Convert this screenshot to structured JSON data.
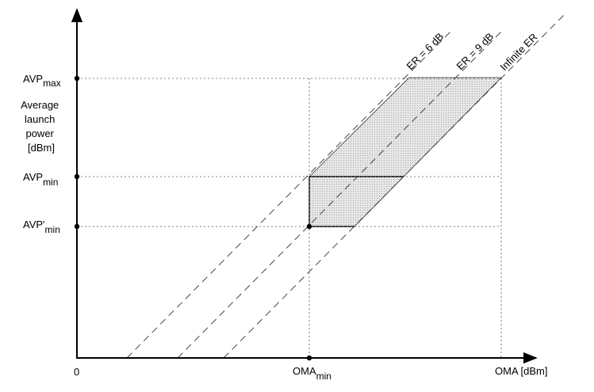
{
  "diagram": {
    "y_axis": {
      "title_lines": [
        "Average",
        "launch",
        "power",
        "[dBm]"
      ],
      "ticks": {
        "avp_max": {
          "main": "AVP",
          "sub": "max"
        },
        "avp_min": {
          "main": "AVP",
          "sub": "min"
        },
        "avp_min_prime": {
          "main": "AVP'",
          "sub": "min"
        }
      }
    },
    "x_axis": {
      "origin_label": "0",
      "oma_min": {
        "main": "OMA",
        "sub": "min"
      },
      "title": "OMA [dBm]"
    },
    "lines": {
      "er_6": "ER = 6 dB",
      "er_9": "ER = 9 dB",
      "er_inf": "Infinite ER"
    },
    "colors": {
      "region_fill": "#e2e2e2",
      "axis": "#000000",
      "guide": "#555555"
    }
  }
}
